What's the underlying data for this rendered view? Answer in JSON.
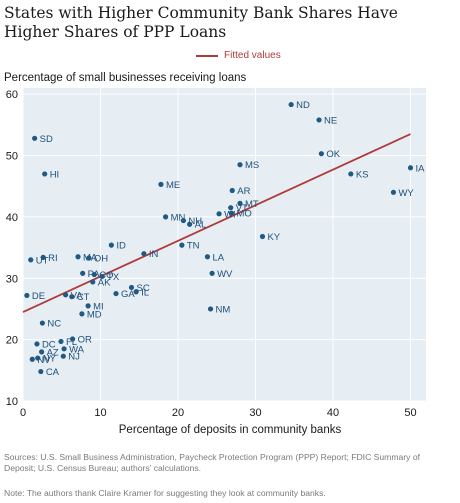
{
  "chart_data": {
    "type": "scatter",
    "title": "States with Higher Community Bank Shares Have Higher Shares of PPP Loans",
    "xlabel": "Percentage of deposits in community banks",
    "ylabel": "Percentage of small businesses receiving loans",
    "xlim": [
      0,
      52
    ],
    "ylim": [
      10,
      61
    ],
    "xticks": [
      0,
      10,
      20,
      30,
      40,
      50
    ],
    "yticks": [
      10,
      20,
      30,
      40,
      50,
      60
    ],
    "grid": true,
    "legend_position": "top-center",
    "point_color": "#1f5a85",
    "line_color": "#b03a3a",
    "fit_line": {
      "name": "Fitted values",
      "x": [
        0,
        50
      ],
      "y": [
        24.5,
        53.5
      ]
    },
    "points": [
      {
        "label": "ND",
        "x": 34.6,
        "y": 58.3
      },
      {
        "label": "NE",
        "x": 38.2,
        "y": 55.8
      },
      {
        "label": "SD",
        "x": 1.5,
        "y": 52.8
      },
      {
        "label": "OK",
        "x": 38.5,
        "y": 50.3
      },
      {
        "label": "MS",
        "x": 28.0,
        "y": 48.5
      },
      {
        "label": "IA",
        "x": 50.0,
        "y": 48.0
      },
      {
        "label": "HI",
        "x": 2.8,
        "y": 47.0
      },
      {
        "label": "KS",
        "x": 42.3,
        "y": 47.0
      },
      {
        "label": "ME",
        "x": 17.8,
        "y": 45.3
      },
      {
        "label": "AR",
        "x": 27.0,
        "y": 44.3
      },
      {
        "label": "WY",
        "x": 47.8,
        "y": 44.0
      },
      {
        "label": "MT",
        "x": 28.0,
        "y": 42.2
      },
      {
        "label": "VT",
        "x": 26.8,
        "y": 41.5
      },
      {
        "label": "MN",
        "x": 18.4,
        "y": 40.0
      },
      {
        "label": "NH",
        "x": 20.7,
        "y": 39.4
      },
      {
        "label": "MO",
        "x": 26.9,
        "y": 40.6
      },
      {
        "label": "WI",
        "x": 25.3,
        "y": 40.5
      },
      {
        "label": "AL",
        "x": 21.5,
        "y": 38.8
      },
      {
        "label": "KY",
        "x": 30.9,
        "y": 36.8
      },
      {
        "label": "ID",
        "x": 11.4,
        "y": 35.4
      },
      {
        "label": "TN",
        "x": 20.5,
        "y": 35.4
      },
      {
        "label": "IN",
        "x": 15.6,
        "y": 34.0
      },
      {
        "label": "MA",
        "x": 7.1,
        "y": 33.5
      },
      {
        "label": "RI",
        "x": 2.6,
        "y": 33.4
      },
      {
        "label": "OH",
        "x": 8.5,
        "y": 33.3
      },
      {
        "label": "UT",
        "x": 1.0,
        "y": 33.0
      },
      {
        "label": "LA",
        "x": 23.8,
        "y": 33.5
      },
      {
        "label": "PA",
        "x": 7.7,
        "y": 30.8
      },
      {
        "label": "WV",
        "x": 24.4,
        "y": 30.8
      },
      {
        "label": "CO",
        "x": 9.2,
        "y": 30.6
      },
      {
        "label": "TX",
        "x": 10.2,
        "y": 30.3
      },
      {
        "label": "AK",
        "x": 9.0,
        "y": 29.4
      },
      {
        "label": "SC",
        "x": 14.0,
        "y": 28.5
      },
      {
        "label": "IL",
        "x": 14.6,
        "y": 27.8
      },
      {
        "label": "GA",
        "x": 12.0,
        "y": 27.5
      },
      {
        "label": "DE",
        "x": 0.5,
        "y": 27.2
      },
      {
        "label": "VA",
        "x": 5.5,
        "y": 27.3
      },
      {
        "label": "CT",
        "x": 6.3,
        "y": 27.0
      },
      {
        "label": "MI",
        "x": 8.4,
        "y": 25.5
      },
      {
        "label": "NM",
        "x": 24.2,
        "y": 25.0
      },
      {
        "label": "MD",
        "x": 7.6,
        "y": 24.2
      },
      {
        "label": "NC",
        "x": 2.5,
        "y": 22.7
      },
      {
        "label": "FL",
        "x": 4.9,
        "y": 19.7
      },
      {
        "label": "OR",
        "x": 6.4,
        "y": 20.1
      },
      {
        "label": "DC",
        "x": 1.8,
        "y": 19.3
      },
      {
        "label": "WA",
        "x": 5.3,
        "y": 18.5
      },
      {
        "label": "AZ",
        "x": 2.4,
        "y": 18.0
      },
      {
        "label": "NJ",
        "x": 5.2,
        "y": 17.3
      },
      {
        "label": "NY",
        "x": 1.9,
        "y": 17.0
      },
      {
        "label": "NV",
        "x": 1.2,
        "y": 16.8
      },
      {
        "label": "CA",
        "x": 2.3,
        "y": 14.8
      }
    ]
  },
  "legend": {
    "fitted_label": "Fitted values"
  },
  "footer": {
    "sources": "Sources: U.S. Small Business Administration, Paycheck Protection Program (PPP) Report; FDIC Summary of Deposit; U.S. Census Bureau; authors' calculations.",
    "note": "Note: The authors thank Claire Kramer for suggesting they look at community banks."
  }
}
